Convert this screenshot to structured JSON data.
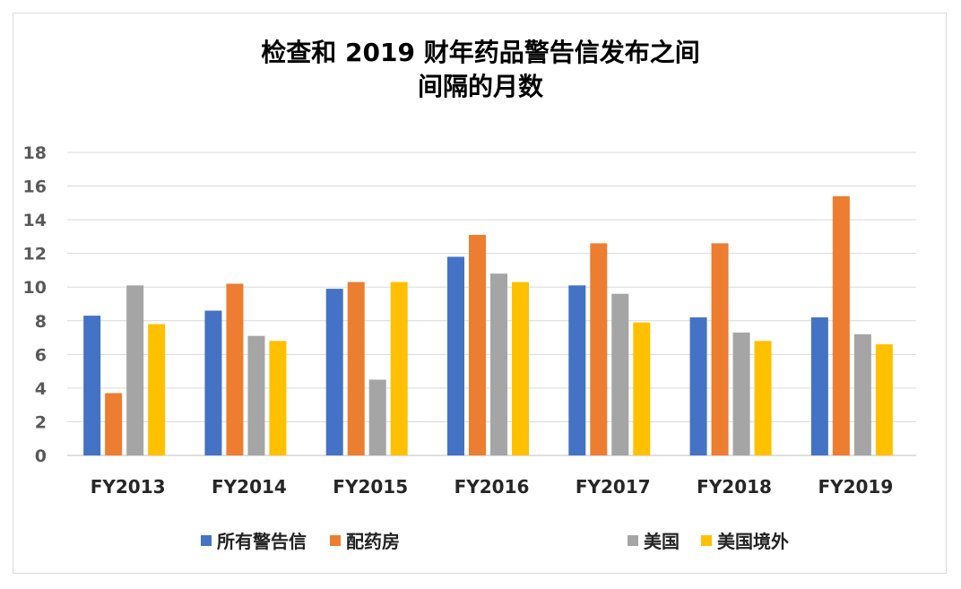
{
  "chart_data": {
    "type": "bar",
    "title_line1": "检查和 2019 财年药品警告信发布之间",
    "title_line2": "间隔的月数",
    "categories": [
      "FY2013",
      "FY2014",
      "FY2015",
      "FY2016",
      "FY2017",
      "FY2018",
      "FY2019"
    ],
    "series": [
      {
        "name": "所有警告信",
        "color": "#4472c4",
        "values": [
          8.3,
          8.6,
          9.9,
          11.8,
          10.1,
          8.2,
          8.2
        ]
      },
      {
        "name": "配药房",
        "color": "#ed7d31",
        "values": [
          3.7,
          10.2,
          10.3,
          13.1,
          12.6,
          12.6,
          15.4
        ]
      },
      {
        "name": "美国",
        "color": "#a5a5a5",
        "values": [
          10.1,
          7.1,
          4.5,
          10.8,
          9.6,
          7.3,
          7.2
        ]
      },
      {
        "name": "美国境外",
        "color": "#ffc000",
        "values": [
          7.8,
          6.8,
          10.3,
          10.3,
          7.9,
          6.8,
          6.6
        ]
      }
    ],
    "ylim": [
      0,
      18
    ],
    "yticks": [
      "0",
      "2",
      "4",
      "6",
      "8",
      "10",
      "12",
      "14",
      "16",
      "18"
    ],
    "grid": true,
    "legend_position": "bottom"
  }
}
